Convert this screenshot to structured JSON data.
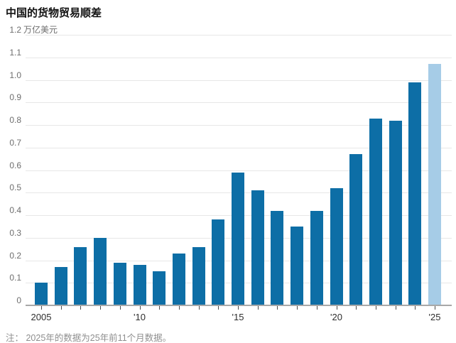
{
  "title": "中国的货物贸易顺差",
  "unit_label": "万亿美元",
  "footnote": "注： 2025年的数据为25年前11个月数据。",
  "colors": {
    "bar": "#0d6ea6",
    "bar_highlight": "#a6cce7",
    "gridline": "#e7e7e7",
    "axis": "#a8a8a8",
    "tick": "#4d4d4d",
    "title_text": "#111111",
    "ylabel_text": "#6e6e6e",
    "xlabel_text": "#2e2e2e",
    "footnote_text": "#8f8f8f"
  },
  "chart_data": {
    "type": "bar",
    "title": "中国的货物贸易顺差",
    "ylabel": "万亿美元",
    "xlabel": "",
    "ylim": [
      0,
      1.2
    ],
    "grid": true,
    "y_tick_labels": [
      "1.2",
      "1.1",
      "1.0",
      "0.9",
      "0.8",
      "0.7",
      "0.6",
      "0.5",
      "0.4",
      "0.3",
      "0.2",
      "0.1",
      "0"
    ],
    "y_tick_values": [
      1.2,
      1.1,
      1.0,
      0.9,
      0.8,
      0.7,
      0.6,
      0.5,
      0.4,
      0.3,
      0.2,
      0.1,
      0
    ],
    "categories": [
      "2005",
      "2006",
      "2007",
      "2008",
      "2009",
      "2010",
      "2011",
      "2012",
      "2013",
      "2014",
      "2015",
      "2016",
      "2017",
      "2018",
      "2019",
      "2020",
      "2021",
      "2022",
      "2023",
      "2024",
      "2025"
    ],
    "values": [
      0.1,
      0.17,
      0.26,
      0.3,
      0.19,
      0.18,
      0.15,
      0.23,
      0.26,
      0.38,
      0.59,
      0.51,
      0.42,
      0.35,
      0.42,
      0.52,
      0.67,
      0.83,
      0.82,
      0.99,
      1.07
    ],
    "x_tick_labels": [
      {
        "index": 0,
        "label": "2005"
      },
      {
        "index": 5,
        "label": "'10"
      },
      {
        "index": 10,
        "label": "'15"
      },
      {
        "index": 15,
        "label": "'20"
      },
      {
        "index": 20,
        "label": "'25"
      }
    ],
    "highlight_index": 20,
    "note": "注： 2025年的数据为25年前11个月数据。",
    "legend": null
  }
}
